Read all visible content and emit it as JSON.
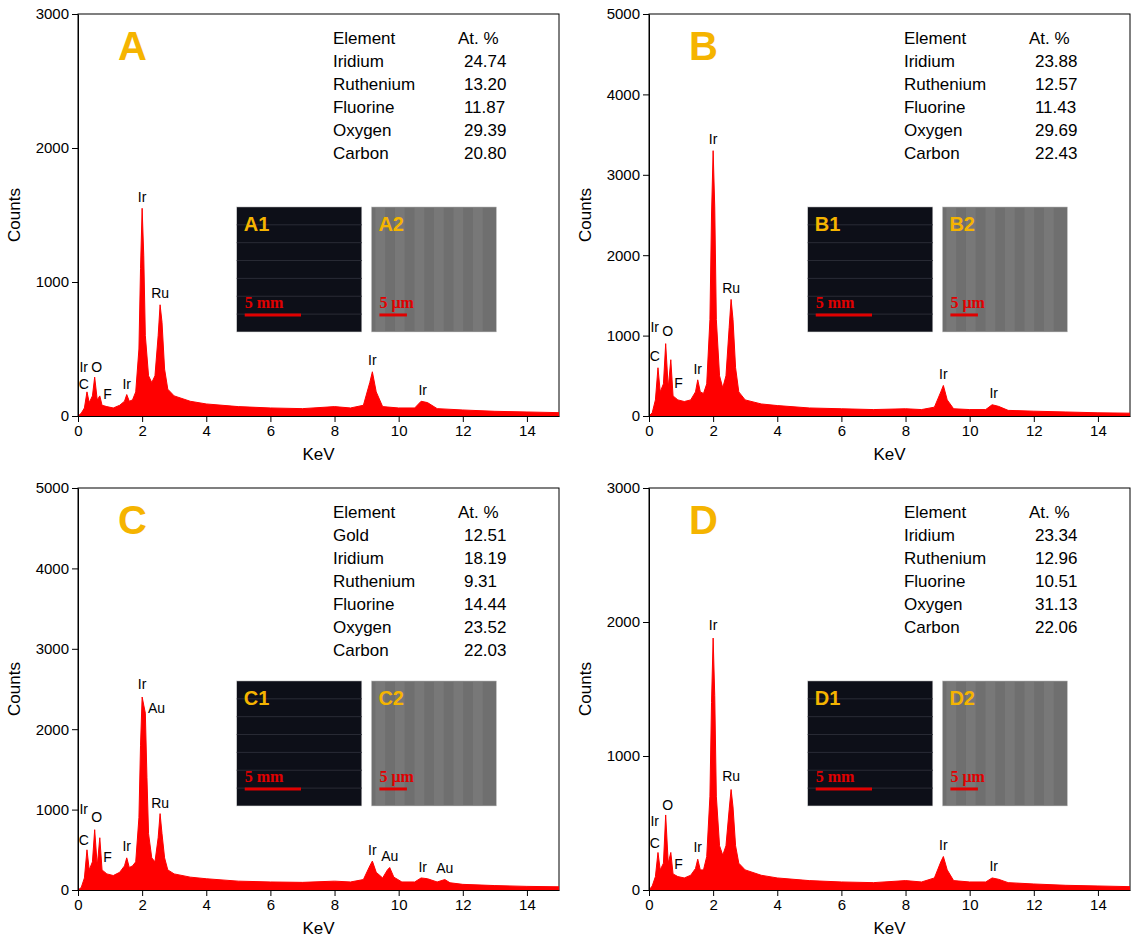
{
  "chart_data": [
    {
      "type": "area",
      "title": "A",
      "color": "#ff0000",
      "x_label": "KeV",
      "y_label": "Counts",
      "xlim": [
        0,
        15
      ],
      "xticks": [
        0,
        2,
        4,
        6,
        8,
        10,
        12,
        14
      ],
      "ylim": [
        0,
        3000
      ],
      "yticks": [
        0,
        1000,
        2000,
        3000
      ],
      "x": [
        0,
        0.1,
        0.2,
        0.28,
        0.35,
        0.45,
        0.52,
        0.6,
        0.68,
        0.75,
        0.9,
        1.1,
        1.3,
        1.45,
        1.52,
        1.6,
        1.7,
        1.8,
        1.9,
        1.95,
        2.0,
        2.05,
        2.1,
        2.2,
        2.3,
        2.4,
        2.5,
        2.56,
        2.62,
        2.7,
        2.8,
        3.0,
        3.5,
        4,
        5,
        6,
        7,
        8,
        8.5,
        8.9,
        9.1,
        9.18,
        9.3,
        9.5,
        10,
        10.5,
        10.7,
        10.9,
        11.2,
        12,
        13,
        14,
        15
      ],
      "values": [
        0,
        20,
        60,
        180,
        100,
        150,
        290,
        120,
        150,
        80,
        70,
        60,
        80,
        110,
        160,
        110,
        120,
        180,
        500,
        1100,
        1550,
        1200,
        600,
        300,
        250,
        300,
        600,
        830,
        700,
        350,
        200,
        150,
        110,
        90,
        70,
        60,
        55,
        70,
        60,
        80,
        250,
        330,
        180,
        70,
        60,
        60,
        110,
        100,
        55,
        45,
        35,
        30,
        25
      ],
      "annotations": [
        {
          "text": "C",
          "x": 0.18,
          "y": 200
        },
        {
          "text": "Ir",
          "x": 0.18,
          "y": 330
        },
        {
          "text": "O",
          "x": 0.58,
          "y": 330
        },
        {
          "text": "F",
          "x": 0.92,
          "y": 130
        },
        {
          "text": "Ir",
          "x": 1.52,
          "y": 200
        },
        {
          "text": "Ir",
          "x": 2.0,
          "y": 1600
        },
        {
          "text": "Ru",
          "x": 2.56,
          "y": 880
        },
        {
          "text": "Ir",
          "x": 9.18,
          "y": 380
        },
        {
          "text": "Ir",
          "x": 10.75,
          "y": 160
        }
      ],
      "table": {
        "header": [
          "Element",
          "At. %"
        ],
        "rows": [
          [
            "Iridium",
            "24.74"
          ],
          [
            "Ruthenium",
            "13.20"
          ],
          [
            "Fluorine",
            "11.87"
          ],
          [
            "Oxygen",
            "29.39"
          ],
          [
            "Carbon",
            "20.80"
          ]
        ]
      },
      "insets": [
        {
          "label": "A1",
          "scale_bar": "5 mm"
        },
        {
          "label": "A2",
          "scale_bar": "5 μm"
        }
      ]
    },
    {
      "type": "area",
      "title": "B",
      "color": "#ff0000",
      "x_label": "KeV",
      "y_label": "Counts",
      "xlim": [
        0,
        15
      ],
      "xticks": [
        0,
        2,
        4,
        6,
        8,
        10,
        12,
        14
      ],
      "ylim": [
        0,
        5000
      ],
      "yticks": [
        0,
        1000,
        2000,
        3000,
        4000,
        5000
      ],
      "x": [
        0,
        0.1,
        0.2,
        0.28,
        0.35,
        0.45,
        0.52,
        0.6,
        0.68,
        0.75,
        0.9,
        1.1,
        1.3,
        1.45,
        1.52,
        1.6,
        1.7,
        1.8,
        1.9,
        1.95,
        2.0,
        2.05,
        2.1,
        2.2,
        2.3,
        2.4,
        2.5,
        2.56,
        2.62,
        2.7,
        2.8,
        3.0,
        3.5,
        4,
        5,
        6,
        7,
        8,
        8.5,
        8.9,
        9.1,
        9.18,
        9.3,
        9.5,
        10,
        10.5,
        10.7,
        10.9,
        11.2,
        12,
        13,
        14,
        15
      ],
      "values": [
        0,
        40,
        200,
        600,
        300,
        400,
        900,
        350,
        700,
        250,
        200,
        180,
        200,
        300,
        450,
        300,
        280,
        400,
        1200,
        2500,
        3300,
        2600,
        1200,
        500,
        350,
        500,
        1100,
        1450,
        1200,
        600,
        300,
        200,
        150,
        130,
        100,
        90,
        80,
        90,
        80,
        110,
        300,
        380,
        200,
        90,
        80,
        80,
        140,
        120,
        70,
        60,
        50,
        40,
        35
      ],
      "annotations": [
        {
          "text": "C",
          "x": 0.18,
          "y": 680
        },
        {
          "text": "Ir",
          "x": 0.18,
          "y": 1050
        },
        {
          "text": "O",
          "x": 0.58,
          "y": 1000
        },
        {
          "text": "F",
          "x": 0.92,
          "y": 350
        },
        {
          "text": "Ir",
          "x": 1.52,
          "y": 520
        },
        {
          "text": "Ir",
          "x": 2.0,
          "y": 3380
        },
        {
          "text": "Ru",
          "x": 2.56,
          "y": 1530
        },
        {
          "text": "Ir",
          "x": 9.18,
          "y": 460
        },
        {
          "text": "Ir",
          "x": 10.75,
          "y": 220
        }
      ],
      "table": {
        "header": [
          "Element",
          "At. %"
        ],
        "rows": [
          [
            "Iridium",
            "23.88"
          ],
          [
            "Ruthenium",
            "12.57"
          ],
          [
            "Fluorine",
            "11.43"
          ],
          [
            "Oxygen",
            "29.69"
          ],
          [
            "Carbon",
            "22.43"
          ]
        ]
      },
      "insets": [
        {
          "label": "B1",
          "scale_bar": "5 mm"
        },
        {
          "label": "B2",
          "scale_bar": "5 μm"
        }
      ]
    },
    {
      "type": "area",
      "title": "C",
      "color": "#ff0000",
      "x_label": "KeV",
      "y_label": "Counts",
      "xlim": [
        0,
        15
      ],
      "xticks": [
        0,
        2,
        4,
        6,
        8,
        10,
        12,
        14
      ],
      "ylim": [
        0,
        5000
      ],
      "yticks": [
        0,
        1000,
        2000,
        3000,
        4000,
        5000
      ],
      "x": [
        0,
        0.1,
        0.2,
        0.28,
        0.35,
        0.45,
        0.52,
        0.6,
        0.68,
        0.75,
        0.9,
        1.1,
        1.3,
        1.45,
        1.52,
        1.6,
        1.7,
        1.8,
        1.9,
        1.95,
        2.0,
        2.05,
        2.1,
        2.15,
        2.2,
        2.3,
        2.4,
        2.5,
        2.56,
        2.62,
        2.7,
        2.8,
        3.0,
        3.5,
        4,
        5,
        6,
        7,
        8,
        8.5,
        8.9,
        9.1,
        9.18,
        9.3,
        9.5,
        9.65,
        9.72,
        9.85,
        10.1,
        10.5,
        10.7,
        10.9,
        11.2,
        11.44,
        11.6,
        12,
        13,
        14,
        15
      ],
      "values": [
        0,
        30,
        150,
        500,
        250,
        350,
        750,
        300,
        650,
        250,
        200,
        180,
        220,
        300,
        400,
        280,
        300,
        350,
        900,
        1800,
        2400,
        2300,
        2200,
        1400,
        700,
        400,
        350,
        650,
        950,
        700,
        400,
        250,
        200,
        160,
        140,
        110,
        100,
        95,
        110,
        100,
        130,
        300,
        360,
        220,
        150,
        250,
        280,
        160,
        100,
        100,
        150,
        140,
        100,
        130,
        90,
        70,
        55,
        45,
        40
      ],
      "annotations": [
        {
          "text": "C",
          "x": 0.18,
          "y": 560
        },
        {
          "text": "Ir",
          "x": 0.18,
          "y": 950
        },
        {
          "text": "O",
          "x": 0.58,
          "y": 850
        },
        {
          "text": "F",
          "x": 0.92,
          "y": 350
        },
        {
          "text": "Ir",
          "x": 1.52,
          "y": 480
        },
        {
          "text": "Ir",
          "x": 2.0,
          "y": 2500
        },
        {
          "text": "Au",
          "x": 2.45,
          "y": 2200
        },
        {
          "text": "Ru",
          "x": 2.56,
          "y": 1020
        },
        {
          "text": "Ir",
          "x": 9.18,
          "y": 440
        },
        {
          "text": "Au",
          "x": 9.72,
          "y": 360
        },
        {
          "text": "Ir",
          "x": 10.75,
          "y": 230
        },
        {
          "text": "Au",
          "x": 11.44,
          "y": 210
        }
      ],
      "table": {
        "header": [
          "Element",
          "At. %"
        ],
        "rows": [
          [
            "Gold",
            "12.51"
          ],
          [
            "Iridium",
            "18.19"
          ],
          [
            "Ruthenium",
            "9.31"
          ],
          [
            "Fluorine",
            "14.44"
          ],
          [
            "Oxygen",
            "23.52"
          ],
          [
            "Carbon",
            "22.03"
          ]
        ]
      },
      "insets": [
        {
          "label": "C1",
          "scale_bar": "5 mm"
        },
        {
          "label": "C2",
          "scale_bar": "5 μm"
        }
      ]
    },
    {
      "type": "area",
      "title": "D",
      "color": "#ff0000",
      "x_label": "KeV",
      "y_label": "Counts",
      "xlim": [
        0,
        15
      ],
      "xticks": [
        0,
        2,
        4,
        6,
        8,
        10,
        12,
        14
      ],
      "ylim": [
        0,
        3000
      ],
      "yticks": [
        0,
        1000,
        2000,
        3000
      ],
      "x": [
        0,
        0.1,
        0.2,
        0.28,
        0.35,
        0.45,
        0.52,
        0.6,
        0.68,
        0.75,
        0.9,
        1.1,
        1.3,
        1.45,
        1.52,
        1.6,
        1.7,
        1.8,
        1.9,
        1.95,
        2.0,
        2.05,
        2.1,
        2.2,
        2.3,
        2.4,
        2.5,
        2.56,
        2.62,
        2.7,
        2.8,
        3.0,
        3.5,
        4,
        5,
        6,
        7,
        8,
        8.5,
        8.9,
        9.1,
        9.18,
        9.3,
        9.5,
        10,
        10.5,
        10.7,
        10.9,
        11.2,
        12,
        13,
        14,
        15
      ],
      "values": [
        0,
        30,
        100,
        280,
        150,
        200,
        560,
        200,
        280,
        120,
        100,
        90,
        110,
        160,
        230,
        150,
        150,
        250,
        700,
        1400,
        1880,
        1450,
        700,
        330,
        260,
        330,
        600,
        750,
        620,
        330,
        200,
        150,
        110,
        90,
        70,
        60,
        55,
        70,
        60,
        90,
        210,
        250,
        150,
        70,
        60,
        60,
        90,
        80,
        55,
        45,
        35,
        30,
        25
      ],
      "annotations": [
        {
          "text": "C",
          "x": 0.18,
          "y": 310
        },
        {
          "text": "Ir",
          "x": 0.18,
          "y": 480
        },
        {
          "text": "O",
          "x": 0.58,
          "y": 600
        },
        {
          "text": "F",
          "x": 0.92,
          "y": 160
        },
        {
          "text": "Ir",
          "x": 1.52,
          "y": 280
        },
        {
          "text": "Ir",
          "x": 2.0,
          "y": 1940
        },
        {
          "text": "Ru",
          "x": 2.56,
          "y": 810
        },
        {
          "text": "Ir",
          "x": 9.18,
          "y": 300
        },
        {
          "text": "Ir",
          "x": 10.75,
          "y": 140
        }
      ],
      "table": {
        "header": [
          "Element",
          "At. %"
        ],
        "rows": [
          [
            "Iridium",
            "23.34"
          ],
          [
            "Ruthenium",
            "12.96"
          ],
          [
            "Fluorine",
            "10.51"
          ],
          [
            "Oxygen",
            "31.13"
          ],
          [
            "Carbon",
            "22.06"
          ]
        ]
      },
      "insets": [
        {
          "label": "D1",
          "scale_bar": "5 mm"
        },
        {
          "label": "D2",
          "scale_bar": "5 μm"
        }
      ]
    }
  ]
}
